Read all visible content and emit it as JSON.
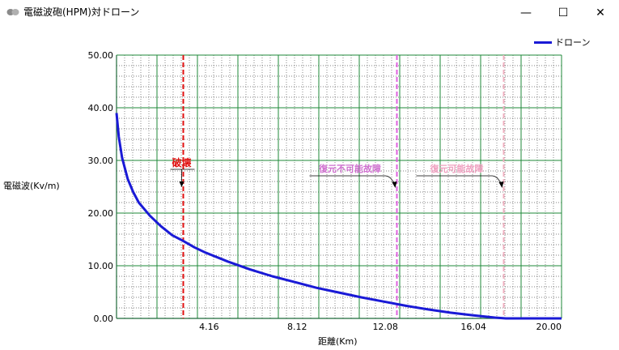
{
  "window": {
    "title": "電磁波砲(HPM)対ドローン",
    "icon": "app-icon",
    "controls": {
      "minimize": "—",
      "maximize": "☐",
      "close": "✕"
    }
  },
  "chart_data": {
    "type": "line",
    "title": "",
    "xlabel": "距離(Km)",
    "ylabel": "電磁波(Kv/m)",
    "xlim": [
      0,
      20
    ],
    "ylim": [
      0,
      50
    ],
    "x_ticks": [
      "4.16",
      "8.12",
      "12.08",
      "16.04",
      "20.00"
    ],
    "x_tick_values": [
      4.16,
      8.12,
      12.08,
      16.04,
      20.0
    ],
    "y_ticks": [
      "0.00",
      "10.00",
      "20.00",
      "30.00",
      "40.00",
      "50.00"
    ],
    "y_tick_values": [
      0,
      10,
      20,
      30,
      40,
      50
    ],
    "grid": true,
    "legend": {
      "position": "top-right",
      "entries": [
        "ドローン"
      ]
    },
    "series": [
      {
        "name": "ドローン",
        "color": "#1a1ad6",
        "x": [
          0.0,
          0.1,
          0.25,
          0.5,
          0.75,
          1.0,
          1.5,
          2.0,
          2.5,
          3.0,
          3.5,
          4.0,
          5.0,
          6.0,
          7.0,
          8.0,
          9.0,
          10.0,
          11.0,
          12.0,
          13.0,
          14.0,
          15.0,
          16.0,
          17.0,
          17.5,
          18.0,
          19.0,
          20.0
        ],
        "y": [
          39.0,
          34.5,
          30.5,
          26.5,
          24.0,
          22.0,
          19.5,
          17.5,
          15.8,
          14.7,
          13.5,
          12.5,
          10.8,
          9.3,
          8.0,
          6.9,
          5.8,
          4.9,
          4.0,
          3.2,
          2.4,
          1.7,
          1.1,
          0.6,
          0.15,
          0.0,
          0.0,
          0.0,
          0.0
        ]
      }
    ],
    "markers": [
      {
        "x": 3.0,
        "label": "破壊",
        "color": "#e01010",
        "label_color": "#e01010"
      },
      {
        "x": 12.6,
        "label": "復元不可能故障",
        "color": "#e060e0",
        "label_color": "#d070d0"
      },
      {
        "x": 17.4,
        "label": "復元可能故障",
        "color": "#f0b0c0",
        "label_color": "#f0a0c0"
      }
    ]
  }
}
